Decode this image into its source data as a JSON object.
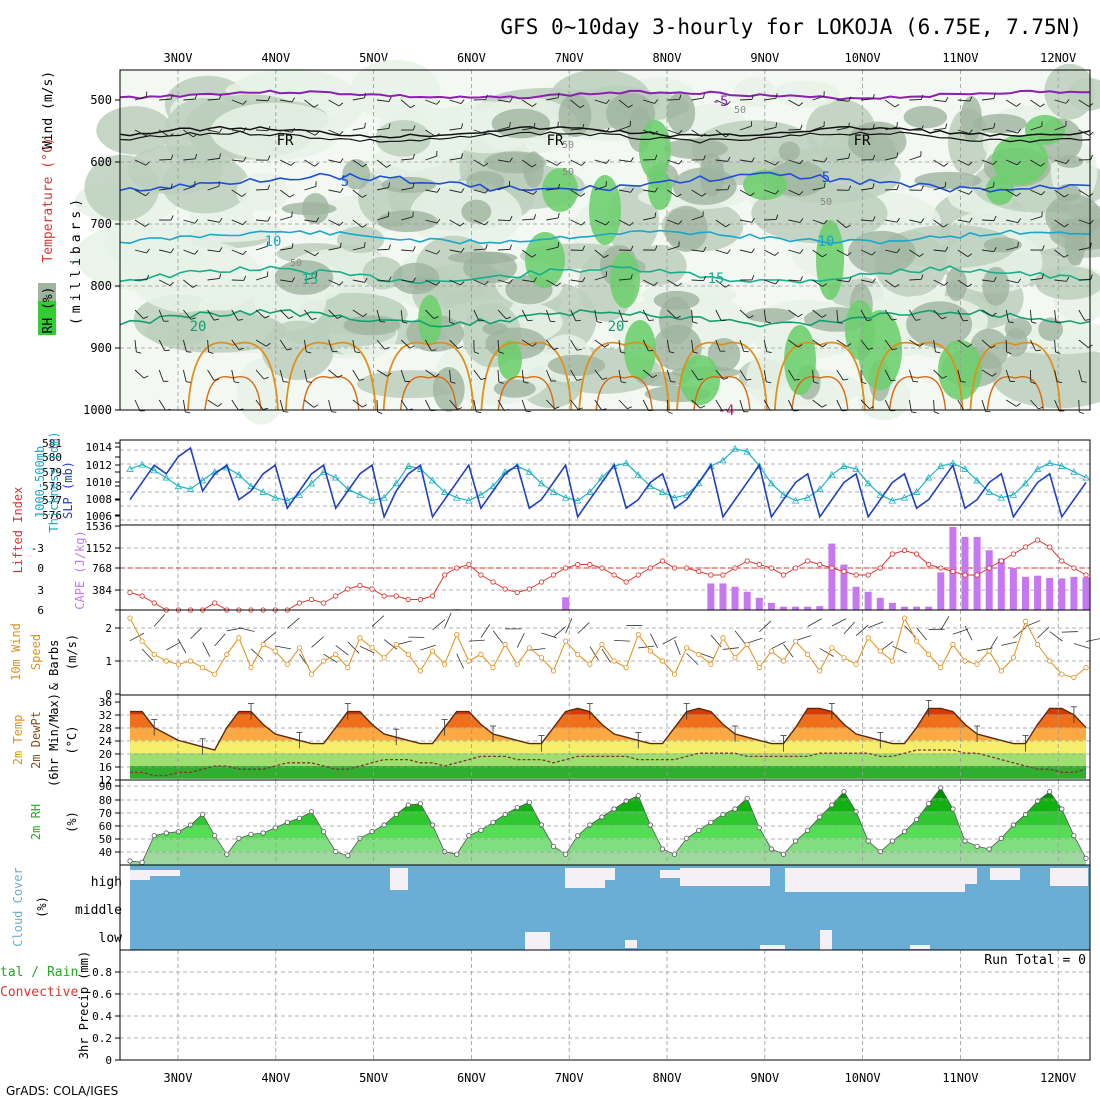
{
  "title": "GFS 0~10day 3-hourly for LOKOJA (6.75E, 7.75N)",
  "footer": "GrADS: COLA/IGES",
  "date_labels": [
    "3NOV",
    "4NOV",
    "5NOV",
    "6NOV",
    "7NOV",
    "8NOV",
    "9NOV",
    "10NOV",
    "11NOV",
    "12NOV"
  ],
  "colors": {
    "rh_light": "#e8f2e8",
    "rh_mid": "#bccfbc",
    "rh_dark": "#9fb49f",
    "rh_green": "#6fcf6f",
    "purple": "#8a1fb0",
    "blue": "#1f4fd6",
    "teal": "#1aa7c9",
    "green_line": "#17b08c",
    "orange": "#e0901a",
    "cloud": "#6aaed6",
    "cape": "#c678f0",
    "lifted": "#d9362e",
    "wind10": "#e0901a",
    "slp": "#1f3fbf",
    "thick": "#1fb3c4"
  },
  "panels": {
    "sounding": {
      "ylabel_rh": "RH (%)",
      "ylabel_temp": "Temperature (°C)",
      "ylabel_wind": "Wind (m/s)",
      "ylabel_mb": "(millibars)",
      "levels": [
        "500",
        "600",
        "700",
        "800",
        "900",
        "1000"
      ],
      "contour_labels": [
        "-5",
        "FR",
        "FR",
        "FR",
        "5",
        "5",
        "10",
        "10",
        "15",
        "15",
        "20",
        "20",
        "50",
        "50",
        "50",
        "50",
        "50",
        "-4"
      ]
    },
    "slp": {
      "ylabel_left": "Thickness (dm)",
      "ylabel_left2": "1000-500mb",
      "ylabel_right": "SLP (mb)",
      "left_ticks": [
        "581",
        "580",
        "579",
        "578",
        "577",
        "576"
      ],
      "right_ticks": [
        "1014",
        "1012",
        "1010",
        "1008",
        "1006"
      ]
    },
    "cape": {
      "ylabel_left": "Lifted Index",
      "ylabel_right": "CAPE (J/kg)",
      "li_ticks": [
        "-3",
        "0",
        "3",
        "6"
      ],
      "cape_ticks": [
        "1536",
        "1152",
        "768",
        "384"
      ]
    },
    "wind10": {
      "ylabel1": "10m Wind",
      "ylabel2": "Speed",
      "ylabel3": "& Barbs",
      "ylabel4": "(m/s)",
      "ticks": [
        "2",
        "1",
        "0"
      ]
    },
    "temp": {
      "ylabel1": "2m Temp",
      "ylabel2": "2m DewPt",
      "ylabel3": "(6hr Min/Max)",
      "ylabel4": "(°C)",
      "ticks": [
        "36",
        "32",
        "28",
        "24",
        "20",
        "16",
        "12"
      ]
    },
    "rh": {
      "ylabel1": "2m RH",
      "ylabel2": "(%)",
      "ticks": [
        "90",
        "80",
        "70",
        "60",
        "50",
        "40"
      ]
    },
    "cloud": {
      "ylabel1": "Cloud Cover",
      "ylabel2": "(%)",
      "high": "high",
      "middle": "middle",
      "low": "low"
    },
    "precip": {
      "ylabel1": "3hr Precip (mm)",
      "ylabel2": "tal / Rain",
      "ylabel3": "Convective",
      "run_total": "Run Total = 0",
      "ticks": [
        "0.8",
        "0.6",
        "0.4",
        "0.2",
        "0"
      ]
    }
  },
  "chart_data": [
    {
      "type": "line",
      "title": "SLP (mb) and 1000-500mb Thickness (dm)",
      "series": [
        {
          "name": "SLP (mb)",
          "values": [
            1008,
            1010,
            1012,
            1011,
            1013,
            1014,
            1009,
            1011,
            1012,
            1008,
            1009,
            1011,
            1012,
            1007,
            1009,
            1011,
            1012,
            1007,
            1009,
            1011,
            1012,
            1006,
            1009,
            1011,
            1012,
            1006,
            1008,
            1010,
            1012,
            1007,
            1009,
            1011,
            1012,
            1007,
            1008,
            1010,
            1012,
            1006,
            1008,
            1010,
            1012,
            1007,
            1008,
            1010,
            1011,
            1007,
            1008,
            1010,
            1012,
            1006,
            1008,
            1010,
            1012,
            1006,
            1008,
            1010,
            1011,
            1006,
            1008,
            1010,
            1011,
            1006,
            1008,
            1010,
            1011,
            1007,
            1008,
            1010,
            1012,
            1007,
            1008,
            1010,
            1011,
            1006,
            1008,
            1010,
            1011,
            1006,
            1008,
            1010
          ]
        },
        {
          "name": "Thickness (dm)",
          "values": [
            579.2,
            579.5,
            579.1,
            578.6,
            578.0,
            577.8,
            578.4,
            579.0,
            579.3,
            578.8,
            578.0,
            577.6,
            577.2,
            577.0,
            577.4,
            578.2,
            579.0,
            578.6,
            577.8,
            577.4,
            577.0,
            577.2,
            578.2,
            579.4,
            579.2,
            578.4,
            577.6,
            577.2,
            577.0,
            577.4,
            578.0,
            579.0,
            579.4,
            579.0,
            578.2,
            577.6,
            577.2,
            577.0,
            577.6,
            578.6,
            579.4,
            579.6,
            578.8,
            578.0,
            577.6,
            577.2,
            577.4,
            578.2,
            579.4,
            579.8,
            580.6,
            580.4,
            579.4,
            578.2,
            577.4,
            577.0,
            577.2,
            577.8,
            578.8,
            579.4,
            579.2,
            578.2,
            577.4,
            577.0,
            577.2,
            577.6,
            578.6,
            579.4,
            579.6,
            579.2,
            578.4,
            577.6,
            577.2,
            577.4,
            578.2,
            579.2,
            579.6,
            579.4,
            579.0,
            578.6
          ]
        }
      ],
      "xlabel": "",
      "ylabel": "SLP (mb)",
      "ylim": [
        1005,
        1015
      ]
    },
    {
      "type": "bar",
      "title": "CAPE (J/kg) and Lifted Index",
      "series": [
        {
          "name": "CAPE (J/kg)",
          "values": [
            0,
            0,
            0,
            0,
            0,
            0,
            0,
            0,
            0,
            0,
            0,
            0,
            0,
            0,
            0,
            0,
            0,
            0,
            0,
            0,
            0,
            0,
            0,
            0,
            0,
            0,
            0,
            15,
            0,
            0,
            0,
            0,
            0,
            0,
            0,
            0,
            230,
            0,
            0,
            0,
            0,
            0,
            0,
            0,
            0,
            0,
            0,
            0,
            480,
            480,
            420,
            330,
            220,
            130,
            60,
            60,
            60,
            70,
            1200,
            820,
            420,
            330,
            220,
            130,
            60,
            60,
            60,
            680,
            1500,
            1320,
            1320,
            1080,
            930,
            760,
            600,
            620,
            580,
            570,
            600,
            590
          ]
        },
        {
          "name": "Lifted Index",
          "values": [
            3.5,
            4,
            5,
            6,
            6,
            6,
            6,
            5,
            6,
            6,
            6,
            6,
            6,
            6,
            5,
            4.5,
            5,
            4,
            3,
            2.5,
            3,
            4,
            4,
            4.5,
            4.5,
            4,
            1,
            0,
            -0.5,
            1,
            2,
            3,
            3.5,
            3,
            2,
            1,
            0,
            -0.5,
            -0.5,
            0,
            1,
            2,
            1,
            0,
            -1,
            0,
            0,
            0.5,
            1,
            1,
            0,
            -1,
            -0.5,
            0,
            1,
            0,
            -1,
            -0.5,
            0,
            0.5,
            1,
            1,
            0,
            -2,
            -2.5,
            -2,
            -0.5,
            0,
            0.5,
            1,
            1,
            0,
            -1,
            -2,
            -3,
            -4,
            -3,
            -1,
            0,
            1
          ]
        }
      ],
      "xlabel": "",
      "ylabel": "CAPE (J/kg)",
      "ylim": [
        0,
        1536
      ]
    },
    {
      "type": "line",
      "title": "10m Wind Speed & Barbs (m/s)",
      "series": [
        {
          "name": "10m Wind Speed (m/s)",
          "values": [
            2.3,
            1.6,
            1.2,
            1.0,
            0.9,
            1.0,
            0.8,
            0.6,
            1.2,
            1.7,
            0.8,
            1.5,
            1.3,
            0.9,
            1.4,
            0.6,
            1.0,
            1.2,
            0.8,
            1.7,
            1.4,
            1.1,
            1.5,
            1.2,
            0.7,
            1.3,
            0.9,
            1.8,
            1.0,
            1.2,
            0.8,
            1.5,
            0.9,
            1.4,
            1.1,
            0.7,
            1.6,
            1.2,
            0.9,
            1.5,
            1.0,
            0.8,
            1.8,
            1.3,
            1.0,
            0.6,
            1.4,
            1.2,
            0.9,
            1.7,
            1.1,
            1.5,
            0.8,
            1.3,
            1.0,
            1.6,
            1.2,
            0.7,
            1.4,
            1.1,
            0.9,
            1.7,
            1.3,
            1.0,
            2.3,
            1.6,
            1.2,
            0.8,
            1.5,
            1.0,
            0.9,
            1.3,
            0.7,
            1.1,
            2.2,
            1.5,
            1.0,
            0.6,
            0.5,
            0.8
          ]
        }
      ],
      "xlabel": "",
      "ylabel": "m/s",
      "ylim": [
        0,
        2.5
      ]
    },
    {
      "type": "area",
      "title": "2m Temp / 2m DewPt (°C)",
      "series": [
        {
          "name": "2m Temp (°C)",
          "values": [
            33,
            33,
            28,
            26,
            24,
            23,
            22,
            21,
            28,
            33,
            33,
            29,
            26,
            25,
            24,
            23,
            23,
            28,
            33,
            33,
            29,
            26,
            25,
            24,
            23,
            23,
            28,
            33,
            33,
            29,
            26,
            25,
            24,
            23,
            23,
            28,
            33,
            34,
            33,
            29,
            26,
            25,
            24,
            23,
            23,
            28,
            33,
            34,
            33,
            29,
            26,
            25,
            24,
            23,
            23,
            28,
            34,
            34,
            33,
            29,
            26,
            25,
            24,
            23,
            23,
            28,
            34,
            34,
            33,
            29,
            26,
            25,
            24,
            23,
            23,
            29,
            34,
            34,
            32,
            28
          ]
        },
        {
          "name": "2m DewPt (°C)",
          "values": [
            14,
            14,
            13,
            13,
            14,
            14,
            15,
            16,
            16,
            15,
            15,
            15,
            16,
            17,
            17,
            17,
            16,
            15,
            15,
            16,
            17,
            18,
            18,
            18,
            17,
            17,
            16,
            17,
            18,
            19,
            19,
            19,
            18,
            18,
            18,
            17,
            18,
            19,
            19,
            19,
            19,
            19,
            18,
            18,
            18,
            18,
            19,
            20,
            20,
            20,
            20,
            19,
            19,
            19,
            19,
            19,
            19,
            20,
            20,
            20,
            20,
            20,
            19,
            19,
            20,
            21,
            21,
            21,
            21,
            20,
            20,
            19,
            18,
            17,
            16,
            15,
            15,
            14,
            14,
            15
          ]
        }
      ],
      "xlabel": "",
      "ylabel": "°C",
      "ylim": [
        12,
        37
      ]
    },
    {
      "type": "area",
      "title": "2m RH (%)",
      "series": [
        {
          "name": "2m RH (%)",
          "values": [
            33,
            32,
            52,
            54,
            55,
            60,
            68,
            52,
            38,
            50,
            53,
            54,
            58,
            62,
            65,
            70,
            55,
            40,
            37,
            50,
            55,
            60,
            68,
            75,
            76,
            60,
            40,
            38,
            52,
            56,
            62,
            68,
            73,
            77,
            60,
            44,
            38,
            52,
            60,
            66,
            72,
            78,
            82,
            60,
            42,
            38,
            50,
            56,
            62,
            68,
            72,
            80,
            58,
            42,
            38,
            48,
            56,
            66,
            75,
            85,
            70,
            48,
            40,
            48,
            55,
            64,
            76,
            88,
            72,
            48,
            44,
            42,
            50,
            60,
            68,
            78,
            85,
            72,
            52,
            35
          ]
        }
      ],
      "xlabel": "",
      "ylabel": "%",
      "ylim": [
        30,
        90
      ]
    },
    {
      "type": "bar",
      "title": "3hr Precip (mm)",
      "series": [
        {
          "name": "Total / Rain",
          "values": [
            0,
            0,
            0,
            0,
            0,
            0,
            0,
            0,
            0,
            0,
            0,
            0,
            0,
            0,
            0,
            0,
            0,
            0,
            0,
            0,
            0,
            0,
            0,
            0,
            0,
            0,
            0,
            0,
            0,
            0,
            0,
            0,
            0,
            0,
            0,
            0,
            0,
            0,
            0,
            0,
            0,
            0,
            0,
            0,
            0,
            0,
            0,
            0,
            0,
            0,
            0,
            0,
            0,
            0,
            0,
            0,
            0,
            0,
            0,
            0,
            0,
            0,
            0,
            0,
            0,
            0,
            0,
            0,
            0,
            0,
            0,
            0,
            0,
            0,
            0,
            0,
            0,
            0,
            0,
            0
          ]
        },
        {
          "name": "Convective",
          "values": [
            0,
            0,
            0,
            0,
            0,
            0,
            0,
            0,
            0,
            0,
            0,
            0,
            0,
            0,
            0,
            0,
            0,
            0,
            0,
            0,
            0,
            0,
            0,
            0,
            0,
            0,
            0,
            0,
            0,
            0,
            0,
            0,
            0,
            0,
            0,
            0,
            0,
            0,
            0,
            0,
            0,
            0,
            0,
            0,
            0,
            0,
            0,
            0,
            0,
            0,
            0,
            0,
            0,
            0,
            0,
            0,
            0,
            0,
            0,
            0,
            0,
            0,
            0,
            0,
            0,
            0,
            0,
            0,
            0,
            0,
            0,
            0,
            0,
            0,
            0,
            0,
            0,
            0,
            0,
            0
          ]
        }
      ],
      "xlabel": "",
      "ylabel": "3hr Precip (mm)",
      "ylim": [
        0,
        1
      ]
    }
  ]
}
